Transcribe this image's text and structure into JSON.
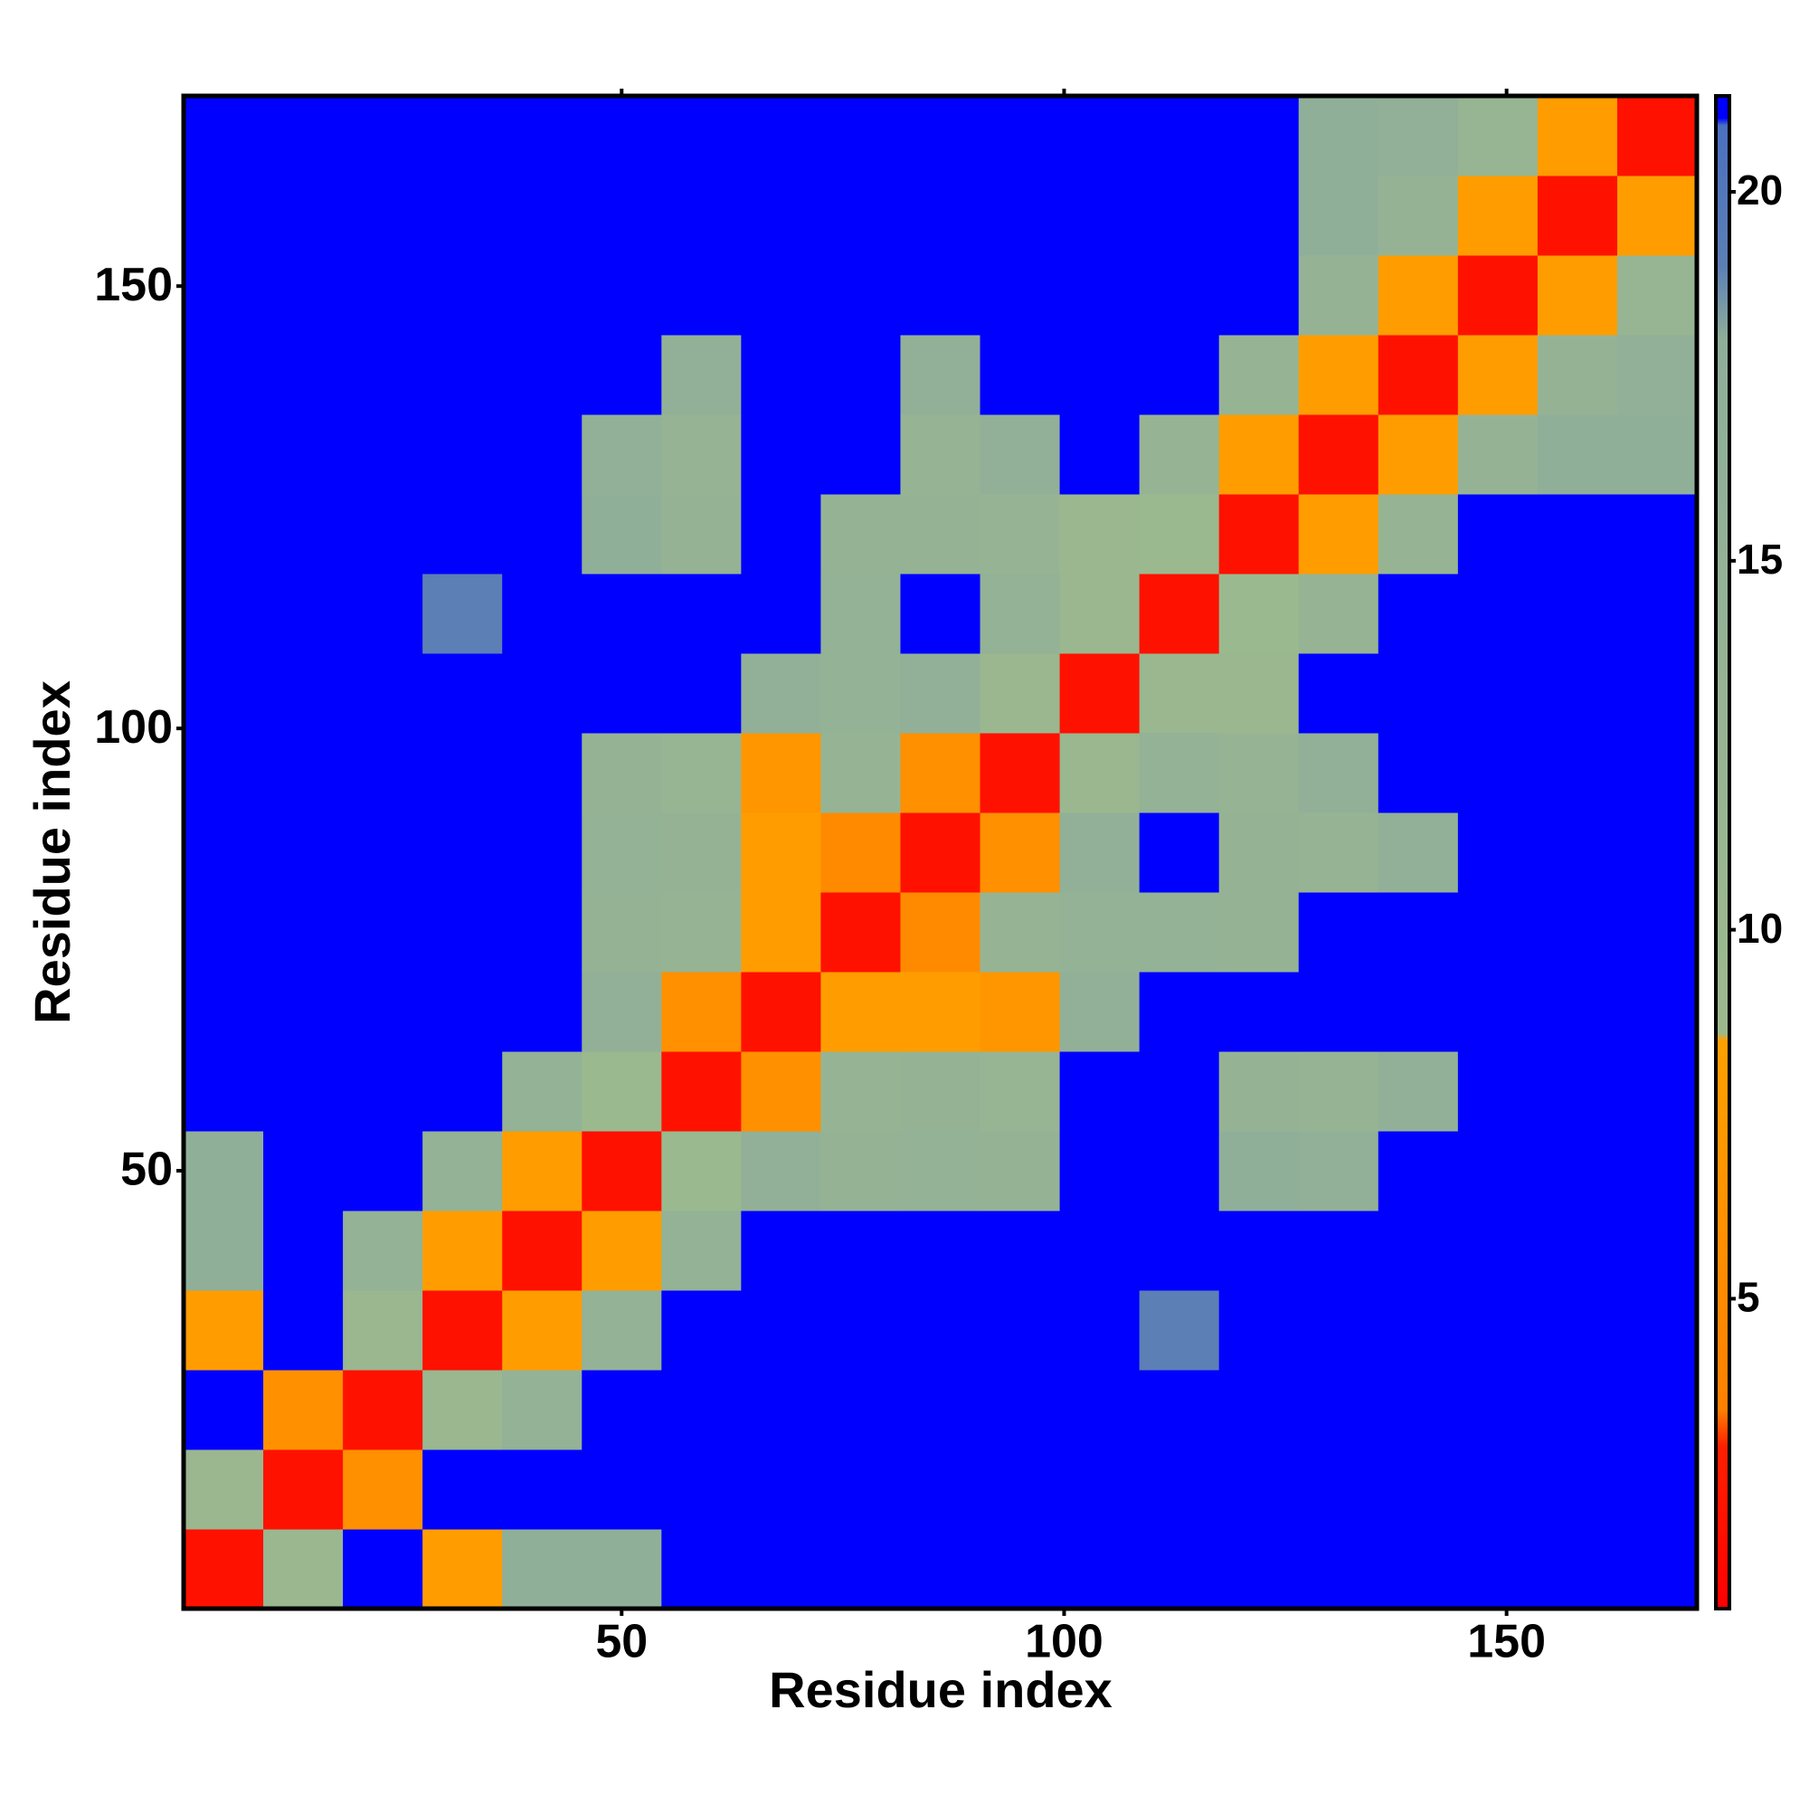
{
  "chart_data": {
    "type": "heatmap",
    "x_label": "Residue index",
    "y_label": "Residue index",
    "x": [
      5,
      14,
      23,
      32,
      41,
      50,
      59,
      68,
      77,
      86,
      95,
      104,
      113,
      122,
      131,
      140,
      149,
      158,
      167
    ],
    "y": [
      5,
      14,
      23,
      32,
      41,
      50,
      59,
      68,
      77,
      86,
      95,
      104,
      113,
      122,
      131,
      140,
      149,
      158,
      167
    ],
    "z": [
      [
        2,
        10,
        21,
        8,
        17,
        17,
        21,
        21,
        21,
        21,
        21,
        21,
        21,
        21,
        21,
        21,
        21,
        21,
        21
      ],
      [
        10,
        2,
        6,
        21,
        21,
        21,
        21,
        21,
        21,
        21,
        21,
        21,
        21,
        21,
        21,
        21,
        21,
        21,
        21
      ],
      [
        21,
        6,
        2,
        10,
        15,
        21,
        21,
        21,
        21,
        21,
        21,
        21,
        21,
        21,
        21,
        21,
        21,
        21,
        21
      ],
      [
        8,
        21,
        10,
        2,
        8,
        15,
        21,
        21,
        21,
        21,
        21,
        21,
        19,
        21,
        21,
        21,
        21,
        21,
        21
      ],
      [
        17,
        21,
        15,
        8,
        2,
        8,
        15,
        21,
        21,
        21,
        21,
        21,
        21,
        21,
        21,
        21,
        21,
        21,
        21
      ],
      [
        17,
        21,
        21,
        15,
        8,
        2,
        9,
        16,
        14,
        15,
        14,
        21,
        21,
        17,
        16,
        21,
        21,
        21,
        21
      ],
      [
        21,
        21,
        21,
        21,
        15,
        9,
        2,
        6,
        13,
        14,
        12,
        21,
        21,
        14,
        13,
        16,
        21,
        21,
        21
      ],
      [
        21,
        21,
        21,
        21,
        21,
        16,
        6,
        2,
        8,
        8,
        7,
        16,
        21,
        21,
        21,
        21,
        21,
        21,
        21
      ],
      [
        21,
        21,
        21,
        21,
        21,
        14,
        13,
        8,
        2,
        5,
        13,
        15,
        15,
        14,
        21,
        21,
        21,
        21,
        21
      ],
      [
        21,
        21,
        21,
        21,
        21,
        15,
        14,
        8,
        5,
        2,
        6,
        16,
        21,
        14,
        13,
        16,
        21,
        21,
        21
      ],
      [
        21,
        21,
        21,
        21,
        21,
        14,
        12,
        7,
        13,
        6,
        2,
        10,
        15,
        13,
        16,
        21,
        21,
        21,
        21
      ],
      [
        21,
        21,
        21,
        21,
        21,
        21,
        21,
        16,
        15,
        16,
        10,
        2,
        10,
        10,
        21,
        21,
        21,
        21,
        21
      ],
      [
        21,
        21,
        21,
        19,
        21,
        21,
        21,
        21,
        15,
        21,
        15,
        10,
        2,
        9,
        13,
        21,
        21,
        21,
        21
      ],
      [
        21,
        21,
        21,
        21,
        21,
        17,
        14,
        21,
        14,
        14,
        13,
        10,
        9,
        2,
        8,
        13,
        21,
        21,
        21
      ],
      [
        21,
        21,
        21,
        21,
        21,
        16,
        13,
        21,
        21,
        13,
        16,
        21,
        13,
        8,
        2,
        8,
        14,
        17,
        17
      ],
      [
        21,
        21,
        21,
        21,
        21,
        21,
        16,
        21,
        21,
        16,
        21,
        21,
        21,
        13,
        8,
        2,
        8,
        14,
        16
      ],
      [
        21,
        21,
        21,
        21,
        21,
        21,
        21,
        21,
        21,
        21,
        21,
        21,
        21,
        21,
        14,
        8,
        2,
        8,
        12
      ],
      [
        21,
        21,
        21,
        21,
        21,
        21,
        21,
        21,
        21,
        21,
        21,
        21,
        21,
        21,
        17,
        14,
        8,
        2,
        8
      ],
      [
        21,
        21,
        21,
        21,
        21,
        21,
        21,
        21,
        21,
        21,
        21,
        21,
        21,
        21,
        17,
        16,
        12,
        8,
        2
      ]
    ],
    "xlim": [
      0.5,
      171.5
    ],
    "ylim": [
      0.5,
      171.5
    ],
    "xticks": [
      50,
      100,
      150
    ],
    "yticks": [
      50,
      100,
      150
    ],
    "zlim": [
      0.8,
      21.3
    ],
    "zticks": [
      5,
      10,
      15,
      20
    ],
    "colorscale": [
      {
        "value": 0.8,
        "color": "#ff0000"
      },
      {
        "value": 3,
        "color": "#ff2000"
      },
      {
        "value": 3.5,
        "color": "#ff8000"
      },
      {
        "value": 8.5,
        "color": "#ffa000"
      },
      {
        "value": 8.6,
        "color": "#9cb98d"
      },
      {
        "value": 18,
        "color": "#8fae9a"
      },
      {
        "value": 19,
        "color": "#5c7fb5"
      },
      {
        "value": 20.9,
        "color": "#4a70c0"
      },
      {
        "value": 21,
        "color": "#0000ff"
      },
      {
        "value": 21.3,
        "color": "#0000ff"
      }
    ]
  }
}
